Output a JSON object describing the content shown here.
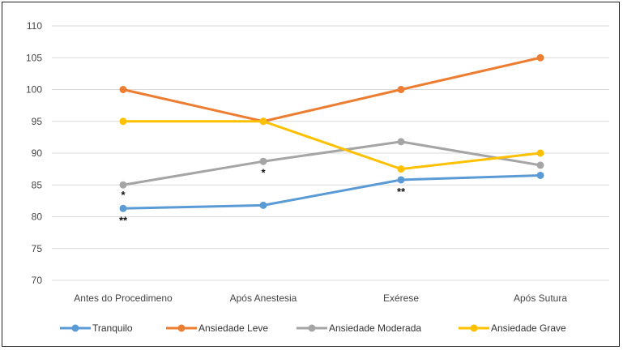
{
  "chart_data": {
    "type": "line",
    "title": "",
    "xlabel": "",
    "ylabel": "",
    "categories": [
      "Antes do Procedimeno",
      "Após Anestesia",
      "Exérese",
      "Após Sutura"
    ],
    "ylim": [
      70,
      110
    ],
    "yticks": [
      70,
      75,
      80,
      85,
      90,
      95,
      100,
      105,
      110
    ],
    "grid": true,
    "legend_position": "bottom",
    "series": [
      {
        "name": "Tranquilo",
        "color": "#5b9bd5",
        "values": [
          81.3,
          81.8,
          85.8,
          86.5
        ]
      },
      {
        "name": "Ansiedade Leve",
        "color": "#ed7d31",
        "values": [
          100,
          95,
          100,
          105
        ]
      },
      {
        "name": "Ansiedade Moderada",
        "color": "#a5a5a5",
        "values": [
          85,
          88.7,
          91.8,
          88.1
        ]
      },
      {
        "name": "Ansiedade Grave",
        "color": "#ffc000",
        "values": [
          95,
          95,
          87.5,
          90
        ]
      }
    ],
    "annotations": [
      {
        "text": "*",
        "category": 0,
        "y": 83.5
      },
      {
        "text": "**",
        "category": 0,
        "y": 79.5
      },
      {
        "text": "*",
        "category": 1,
        "y": 87.0
      },
      {
        "text": "**",
        "category": 2,
        "y": 84.0
      }
    ]
  }
}
